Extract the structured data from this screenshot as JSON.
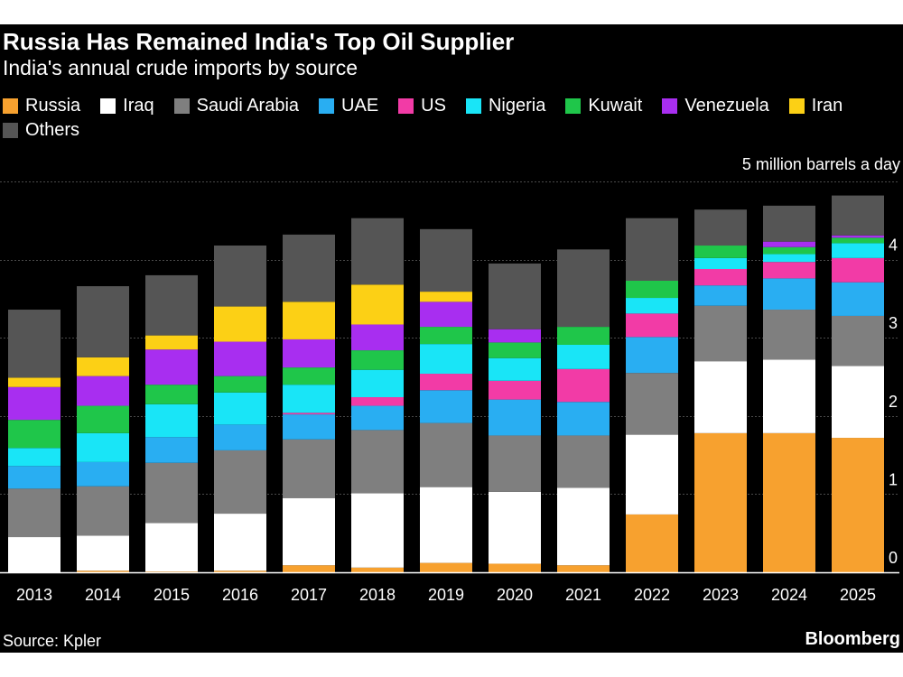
{
  "title": "Russia Has Remained India's Top Oil Supplier",
  "subtitle": "India's annual crude imports by source",
  "unit_label": "5 million barrels a day",
  "source": "Source: Kpler",
  "brand": "Bloomberg",
  "chart_data": {
    "type": "bar",
    "stacked": true,
    "title": "Russia Has Remained India's Top Oil Supplier",
    "subtitle": "India's annual crude imports by source",
    "xlabel": "",
    "ylabel": "5 million barrels a day",
    "ylim": [
      0,
      5
    ],
    "yticks": [
      0,
      1,
      2,
      3,
      4
    ],
    "grid": true,
    "legend_position": "top",
    "categories": [
      "2013",
      "2014",
      "2015",
      "2016",
      "2017",
      "2018",
      "2019",
      "2020",
      "2021",
      "2022",
      "2023",
      "2024",
      "2025"
    ],
    "series": [
      {
        "name": "Russia",
        "color": "#f7a12f",
        "values": [
          0.0,
          0.02,
          0.01,
          0.02,
          0.09,
          0.06,
          0.12,
          0.11,
          0.09,
          0.74,
          1.78,
          1.78,
          1.72
        ]
      },
      {
        "name": "Iraq",
        "color": "#ffffff",
        "values": [
          0.45,
          0.45,
          0.62,
          0.73,
          0.86,
          0.95,
          0.97,
          0.92,
          0.99,
          1.02,
          0.92,
          0.94,
          0.92
        ]
      },
      {
        "name": "Saudi Arabia",
        "color": "#7f7f7f",
        "values": [
          0.62,
          0.63,
          0.77,
          0.81,
          0.75,
          0.81,
          0.82,
          0.72,
          0.67,
          0.79,
          0.71,
          0.64,
          0.64
        ]
      },
      {
        "name": "UAE",
        "color": "#29aef2",
        "values": [
          0.29,
          0.31,
          0.33,
          0.33,
          0.32,
          0.31,
          0.42,
          0.46,
          0.43,
          0.46,
          0.26,
          0.4,
          0.43
        ]
      },
      {
        "name": "US",
        "color": "#f23ba6",
        "values": [
          0.0,
          0.0,
          0.0,
          0.0,
          0.02,
          0.11,
          0.21,
          0.24,
          0.42,
          0.3,
          0.21,
          0.21,
          0.31
        ]
      },
      {
        "name": "Nigeria",
        "color": "#19e5f7",
        "values": [
          0.23,
          0.37,
          0.42,
          0.41,
          0.36,
          0.35,
          0.38,
          0.29,
          0.31,
          0.2,
          0.14,
          0.1,
          0.19
        ]
      },
      {
        "name": "Kuwait",
        "color": "#1fc64a",
        "values": [
          0.36,
          0.35,
          0.25,
          0.21,
          0.22,
          0.25,
          0.22,
          0.2,
          0.23,
          0.22,
          0.16,
          0.09,
          0.07
        ]
      },
      {
        "name": "Venezuela",
        "color": "#a82ef0",
        "values": [
          0.42,
          0.38,
          0.45,
          0.44,
          0.36,
          0.33,
          0.32,
          0.17,
          0.0,
          0.0,
          0.0,
          0.07,
          0.03
        ]
      },
      {
        "name": "Iran",
        "color": "#fcd015",
        "values": [
          0.12,
          0.24,
          0.18,
          0.45,
          0.48,
          0.51,
          0.13,
          0.0,
          0.0,
          0.0,
          0.0,
          0.0,
          0.0
        ]
      },
      {
        "name": "Others",
        "color": "#555555",
        "values": [
          0.87,
          0.91,
          0.77,
          0.78,
          0.86,
          0.85,
          0.8,
          0.84,
          0.99,
          0.8,
          0.46,
          0.46,
          0.51
        ]
      }
    ]
  }
}
